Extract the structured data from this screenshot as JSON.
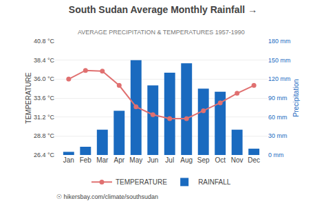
{
  "chart_data": {
    "type": "bar",
    "title": "South Sudan Average Monthly Rainfall →",
    "subtitle": "AVERAGE PRECIPITATION & TEMPERATURES 1957-1990",
    "annotations": [
      "☉ hikersbay.com/climate/southsudan"
    ],
    "categories": [
      "Jan",
      "Feb",
      "Mar",
      "Apr",
      "May",
      "Jun",
      "Jul",
      "Aug",
      "Sep",
      "Oct",
      "Nov",
      "Dec"
    ],
    "series": [
      {
        "name": "TEMPERATURE",
        "type": "line",
        "color": "#e07070",
        "marker": "circle",
        "axis": "y",
        "values": [
          36.0,
          37.1,
          37.0,
          35.2,
          32.5,
          31.5,
          31.0,
          31.0,
          32.0,
          33.0,
          34.2,
          35.2
        ]
      },
      {
        "name": "RAINFALL",
        "type": "bar",
        "color": "#1a6abf",
        "axis": "y2",
        "values": [
          5,
          13,
          40,
          70,
          150,
          110,
          130,
          145,
          105,
          100,
          40,
          10
        ]
      }
    ],
    "ylabel": "TEMPERATURE",
    "y2label": "Precipitation",
    "ylim": [
      26.4,
      40.8
    ],
    "yticks": [
      {
        "value": 26.4,
        "label": "26.4 °C"
      },
      {
        "value": 28.8,
        "label": "28.8 °C"
      },
      {
        "value": 31.2,
        "label": "31.2 °C"
      },
      {
        "value": 33.6,
        "label": "33.6 °C"
      },
      {
        "value": 36.0,
        "label": "36.0 °C"
      },
      {
        "value": 38.4,
        "label": "38.4 °C"
      },
      {
        "value": 40.8,
        "label": "40.8 °C"
      }
    ],
    "y2lim": [
      0,
      180
    ],
    "y2ticks": [
      {
        "value": 0,
        "label": "0 mm"
      },
      {
        "value": 30,
        "label": "30 mm"
      },
      {
        "value": 60,
        "label": "60 mm"
      },
      {
        "value": 90,
        "label": "90 mm"
      },
      {
        "value": 120,
        "label": "120 mm"
      },
      {
        "value": 150,
        "label": "150 mm"
      },
      {
        "value": 180,
        "label": "180 mm"
      }
    ],
    "grid": true,
    "legend": "bottom"
  }
}
